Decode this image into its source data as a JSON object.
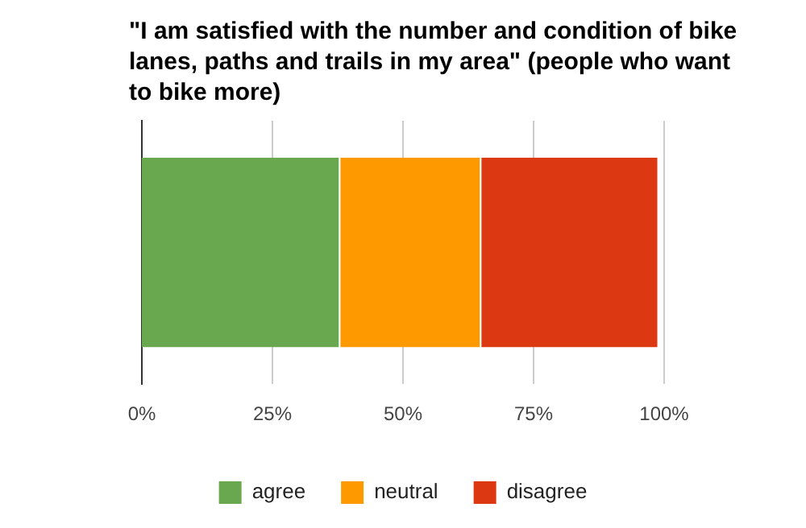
{
  "chart_data": {
    "type": "bar",
    "orientation": "horizontal",
    "stacked": true,
    "title": "\"I am satisfied with the number and condition of bike lanes, paths and trails in my area\" (people who want to bike more)",
    "categories": [
      null
    ],
    "series": [
      {
        "name": "agree",
        "color": "#6aa84f",
        "values": [
          38
        ]
      },
      {
        "name": "neutral",
        "color": "#ff9900",
        "values": [
          27
        ]
      },
      {
        "name": "disagree",
        "color": "#dc3912",
        "values": [
          34
        ]
      }
    ],
    "xlim": [
      0,
      100
    ],
    "xticks": [
      {
        "value": 0,
        "label": "0%"
      },
      {
        "value": 25,
        "label": "25%"
      },
      {
        "value": 50,
        "label": "50%"
      },
      {
        "value": 75,
        "label": "75%"
      },
      {
        "value": 100,
        "label": "100%"
      }
    ],
    "grid": "x",
    "legend": "bottom",
    "tick_labels": "x"
  }
}
